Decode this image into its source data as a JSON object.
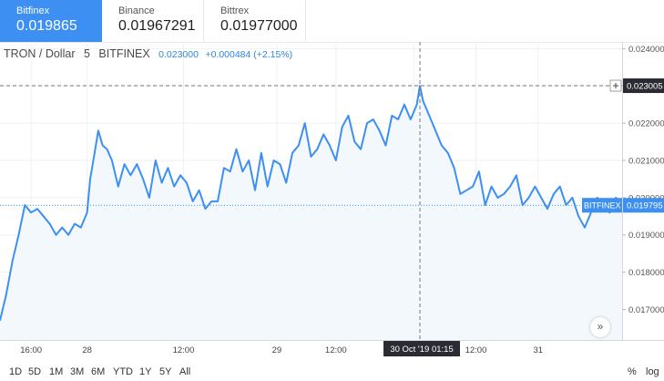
{
  "exchanges": [
    {
      "name": "Bitfinex",
      "price": "0.019865",
      "active": true
    },
    {
      "name": "Binance",
      "price": "0.01967291",
      "active": false
    },
    {
      "name": "Bittrex",
      "price": "0.01977000",
      "active": false
    }
  ],
  "symbol": {
    "name": "TRON / Dollar",
    "interval": "5",
    "exchange": "BITFINEX",
    "last": "0.023000",
    "change": "+0.000484 (+2.15%)"
  },
  "crosshair": {
    "price_label": "0.023005",
    "time_label": "30 Oct '19   01:15"
  },
  "last_price": {
    "exchange_label": "BITFINEX",
    "value_label": "0.019795",
    "value": 0.019795
  },
  "colors": {
    "line": "#3d8ff2",
    "area": "#f3f8fd",
    "active_tab": "#3d8ff2",
    "axis_label_bg": "#2b2b33"
  },
  "timeframes": [
    "1D",
    "5D",
    "1M",
    "3M",
    "6M",
    "YTD",
    "1Y",
    "5Y",
    "All"
  ],
  "scale_options": [
    "%",
    "log"
  ],
  "scroll_icon": "double-chevron-right-icon",
  "chart_data": {
    "type": "area",
    "y_ticks": [
      "0.024000",
      "0.023000",
      "0.022000",
      "0.021000",
      "0.020000",
      "0.019000",
      "0.018000",
      "0.017000"
    ],
    "y_tick_values": [
      0.024,
      0.023,
      0.022,
      0.021,
      0.02,
      0.019,
      0.018,
      0.017
    ],
    "ylim": [
      0.01618,
      0.02418
    ],
    "x_ticks": [
      "16:00",
      "28",
      "12:00",
      "29",
      "12:00",
      "30 Oct '19",
      "12:00",
      "31"
    ],
    "x_tick_values": [
      0.05,
      0.14,
      0.295,
      0.445,
      0.54,
      0.665,
      0.765,
      0.865
    ],
    "xlim": [
      0,
      1
    ],
    "grid": true,
    "crosshair_x": 0.675,
    "crosshair_y": 0.023005,
    "series": [
      {
        "x": [
          0.0,
          0.01,
          0.02,
          0.03,
          0.04,
          0.05,
          0.06,
          0.07,
          0.08,
          0.09,
          0.1,
          0.11,
          0.12,
          0.13,
          0.14,
          0.145,
          0.15,
          0.158,
          0.165,
          0.172,
          0.18,
          0.19,
          0.2,
          0.21,
          0.22,
          0.23,
          0.24,
          0.25,
          0.26,
          0.27,
          0.28,
          0.29,
          0.3,
          0.31,
          0.32,
          0.33,
          0.34,
          0.35,
          0.36,
          0.37,
          0.38,
          0.39,
          0.4,
          0.41,
          0.42,
          0.43,
          0.44,
          0.45,
          0.46,
          0.47,
          0.48,
          0.49,
          0.5,
          0.51,
          0.52,
          0.53,
          0.54,
          0.55,
          0.56,
          0.57,
          0.58,
          0.59,
          0.6,
          0.61,
          0.62,
          0.63,
          0.64,
          0.65,
          0.66,
          0.67,
          0.675,
          0.68,
          0.69,
          0.7,
          0.71,
          0.72,
          0.73,
          0.74,
          0.75,
          0.76,
          0.77,
          0.78,
          0.79,
          0.8,
          0.81,
          0.82,
          0.83,
          0.84,
          0.85,
          0.86,
          0.87,
          0.88,
          0.89,
          0.9,
          0.91,
          0.92,
          0.93,
          0.94,
          0.95,
          0.96,
          0.97,
          0.98,
          0.99,
          1.0
        ],
        "values": [
          0.0167,
          0.0174,
          0.0183,
          0.019,
          0.0198,
          0.0196,
          0.0197,
          0.0195,
          0.0193,
          0.019,
          0.0192,
          0.019,
          0.0193,
          0.0192,
          0.0196,
          0.0205,
          0.021,
          0.0218,
          0.0214,
          0.0213,
          0.021,
          0.0203,
          0.0209,
          0.0206,
          0.0209,
          0.0205,
          0.02,
          0.021,
          0.0204,
          0.0208,
          0.0203,
          0.0206,
          0.0204,
          0.0199,
          0.0202,
          0.0197,
          0.0199,
          0.0199,
          0.0208,
          0.0207,
          0.0213,
          0.0207,
          0.021,
          0.0202,
          0.0212,
          0.0203,
          0.021,
          0.0209,
          0.0204,
          0.0212,
          0.0214,
          0.022,
          0.0211,
          0.0213,
          0.0217,
          0.0214,
          0.021,
          0.0219,
          0.0222,
          0.0215,
          0.0213,
          0.022,
          0.0221,
          0.0218,
          0.0214,
          0.0222,
          0.0221,
          0.0225,
          0.0221,
          0.0225,
          0.023,
          0.0226,
          0.0222,
          0.0218,
          0.0214,
          0.0212,
          0.0208,
          0.0201,
          0.0202,
          0.0203,
          0.0207,
          0.0198,
          0.0203,
          0.02,
          0.0201,
          0.0203,
          0.0206,
          0.0198,
          0.02,
          0.0203,
          0.02,
          0.0197,
          0.0201,
          0.0203,
          0.0198,
          0.02,
          0.0195,
          0.0192,
          0.0196,
          0.02,
          0.0198,
          0.0196,
          0.02,
          0.0198
        ]
      }
    ]
  }
}
